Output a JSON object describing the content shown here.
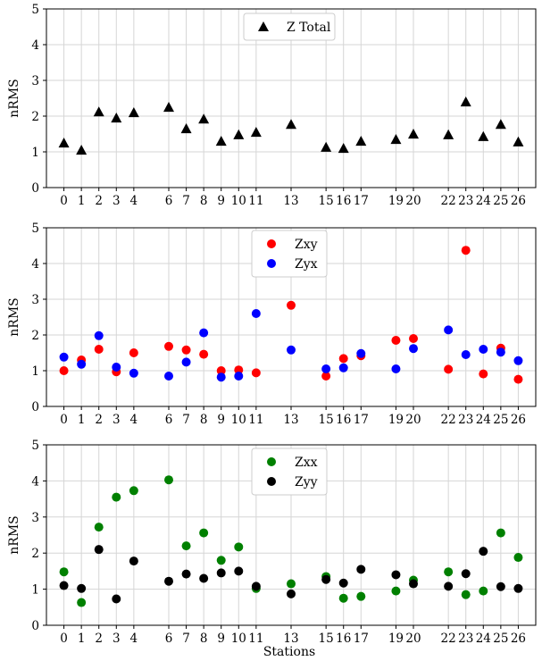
{
  "figure": {
    "x_label": "Stations"
  },
  "chart_data": [
    {
      "type": "scatter",
      "panel": "top",
      "ylabel": "nRMS",
      "ylim": [
        0,
        5
      ],
      "yticks": [
        0,
        1,
        2,
        3,
        4,
        5
      ],
      "x_ticks": [
        0,
        1,
        2,
        3,
        4,
        6,
        7,
        8,
        9,
        10,
        11,
        13,
        15,
        16,
        17,
        19,
        20,
        22,
        23,
        24,
        25,
        26
      ],
      "grid": true,
      "legend_position": "top-center",
      "series": [
        {
          "name": "Z Total",
          "marker": "triangle",
          "color": "#000000",
          "points": [
            [
              0,
              1.25
            ],
            [
              1,
              1.05
            ],
            [
              2,
              2.12
            ],
            [
              3,
              1.95
            ],
            [
              4,
              2.1
            ],
            [
              6,
              2.25
            ],
            [
              7,
              1.65
            ],
            [
              8,
              1.92
            ],
            [
              9,
              1.3
            ],
            [
              10,
              1.48
            ],
            [
              11,
              1.55
            ],
            [
              13,
              1.77
            ],
            [
              15,
              1.13
            ],
            [
              16,
              1.1
            ],
            [
              17,
              1.3
            ],
            [
              19,
              1.35
            ],
            [
              20,
              1.5
            ],
            [
              22,
              1.48
            ],
            [
              23,
              2.4
            ],
            [
              24,
              1.43
            ],
            [
              25,
              1.77
            ],
            [
              26,
              1.28
            ]
          ]
        }
      ]
    },
    {
      "type": "scatter",
      "panel": "middle",
      "ylabel": "nRMS",
      "ylim": [
        0,
        5
      ],
      "yticks": [
        0,
        1,
        2,
        3,
        4,
        5
      ],
      "x_ticks": [
        0,
        1,
        2,
        3,
        4,
        6,
        7,
        8,
        9,
        10,
        11,
        13,
        15,
        16,
        17,
        19,
        20,
        22,
        23,
        24,
        25,
        26
      ],
      "grid": true,
      "legend_position": "top-center",
      "series": [
        {
          "name": "Zxy",
          "marker": "circle",
          "color": "#ff0000",
          "points": [
            [
              0,
              1.0
            ],
            [
              1,
              1.3
            ],
            [
              2,
              1.6
            ],
            [
              3,
              0.97
            ],
            [
              4,
              1.5
            ],
            [
              6,
              1.68
            ],
            [
              7,
              1.58
            ],
            [
              8,
              1.46
            ],
            [
              9,
              1.0
            ],
            [
              10,
              1.02
            ],
            [
              11,
              0.94
            ],
            [
              13,
              2.83
            ],
            [
              15,
              0.85
            ],
            [
              16,
              1.34
            ],
            [
              17,
              1.42
            ],
            [
              19,
              1.85
            ],
            [
              20,
              1.9
            ],
            [
              22,
              1.04
            ],
            [
              23,
              4.37
            ],
            [
              24,
              0.91
            ],
            [
              25,
              1.63
            ],
            [
              26,
              0.76
            ]
          ]
        },
        {
          "name": "Zyx",
          "marker": "circle",
          "color": "#0000ff",
          "points": [
            [
              0,
              1.38
            ],
            [
              1,
              1.18
            ],
            [
              2,
              1.98
            ],
            [
              3,
              1.1
            ],
            [
              4,
              0.93
            ],
            [
              6,
              0.85
            ],
            [
              7,
              1.24
            ],
            [
              8,
              2.06
            ],
            [
              9,
              0.82
            ],
            [
              10,
              0.85
            ],
            [
              11,
              2.6
            ],
            [
              13,
              1.58
            ],
            [
              15,
              1.05
            ],
            [
              16,
              1.08
            ],
            [
              17,
              1.48
            ],
            [
              19,
              1.05
            ],
            [
              20,
              1.62
            ],
            [
              22,
              2.14
            ],
            [
              23,
              1.45
            ],
            [
              24,
              1.6
            ],
            [
              25,
              1.52
            ],
            [
              26,
              1.28
            ]
          ]
        }
      ]
    },
    {
      "type": "scatter",
      "panel": "bottom",
      "ylabel": "nRMS",
      "ylim": [
        0,
        5
      ],
      "yticks": [
        0,
        1,
        2,
        3,
        4,
        5
      ],
      "x_ticks": [
        0,
        1,
        2,
        3,
        4,
        6,
        7,
        8,
        9,
        10,
        11,
        13,
        15,
        16,
        17,
        19,
        20,
        22,
        23,
        24,
        25,
        26
      ],
      "grid": true,
      "legend_position": "top-center",
      "series": [
        {
          "name": "Zxx",
          "marker": "circle",
          "color": "#008000",
          "points": [
            [
              0,
              1.48
            ],
            [
              1,
              0.63
            ],
            [
              2,
              2.72
            ],
            [
              3,
              3.55
            ],
            [
              4,
              3.73
            ],
            [
              6,
              4.03
            ],
            [
              7,
              2.2
            ],
            [
              8,
              2.56
            ],
            [
              9,
              1.8
            ],
            [
              10,
              2.17
            ],
            [
              11,
              1.02
            ],
            [
              13,
              1.15
            ],
            [
              15,
              1.35
            ],
            [
              16,
              0.75
            ],
            [
              17,
              0.8
            ],
            [
              19,
              0.95
            ],
            [
              20,
              1.25
            ],
            [
              22,
              1.48
            ],
            [
              23,
              0.85
            ],
            [
              24,
              0.95
            ],
            [
              25,
              2.56
            ],
            [
              26,
              1.88
            ]
          ]
        },
        {
          "name": "Zyy",
          "marker": "circle",
          "color": "#000000",
          "points": [
            [
              0,
              1.1
            ],
            [
              1,
              1.02
            ],
            [
              2,
              2.1
            ],
            [
              3,
              0.73
            ],
            [
              4,
              1.78
            ],
            [
              6,
              1.22
            ],
            [
              7,
              1.42
            ],
            [
              8,
              1.3
            ],
            [
              9,
              1.45
            ],
            [
              10,
              1.5
            ],
            [
              11,
              1.08
            ],
            [
              13,
              0.87
            ],
            [
              15,
              1.27
            ],
            [
              16,
              1.17
            ],
            [
              17,
              1.55
            ],
            [
              19,
              1.4
            ],
            [
              20,
              1.15
            ],
            [
              22,
              1.08
            ],
            [
              23,
              1.43
            ],
            [
              24,
              2.05
            ],
            [
              25,
              1.07
            ],
            [
              26,
              1.02
            ]
          ]
        }
      ]
    }
  ]
}
